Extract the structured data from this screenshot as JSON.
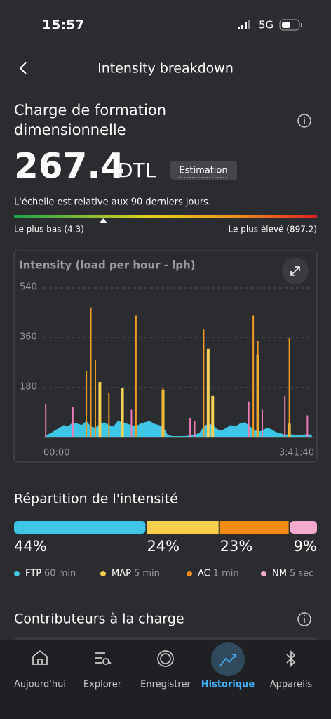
{
  "status": {
    "time": "15:57",
    "network": "5G"
  },
  "header": {
    "title": "Intensity breakdown"
  },
  "metric": {
    "title_line1": "Charge de formation",
    "title_line2": "dimensionnelle",
    "value": 267.4,
    "unit": "DTL",
    "badge": "Estimation"
  },
  "scale": {
    "note": "L'échelle est relative aux 90 derniers jours.",
    "min": {
      "value": 4.3,
      "label": "Le plus bas (4.3)"
    },
    "max": {
      "value": 897.2,
      "label": "Le plus élevé (897.2)"
    }
  },
  "chart": {
    "title": "Intensity (load per hour - lph)",
    "ylim": [
      0,
      540
    ],
    "yticks": [
      180,
      360,
      540
    ],
    "x_start": "00:00",
    "x_end": "3:41:40",
    "series": [
      {
        "name": "FTP",
        "color": "#3ec6e6",
        "values": [
          8,
          15,
          25,
          35,
          45,
          40,
          55,
          50,
          45,
          60,
          40,
          35,
          50,
          55,
          45,
          40,
          60,
          55,
          50,
          45,
          40,
          50,
          55,
          60,
          50,
          45,
          40,
          10,
          5,
          5,
          5,
          5,
          8,
          10,
          15,
          40,
          50,
          45,
          30,
          25,
          35,
          45,
          40,
          50,
          55,
          45,
          30,
          20,
          25,
          35,
          30,
          20,
          15,
          10,
          12,
          10,
          8,
          10,
          12,
          10
        ]
      },
      {
        "name": "MAP",
        "color": "#f7d154",
        "values": [
          null,
          null,
          null,
          null,
          null,
          null,
          null,
          null,
          null,
          null,
          null,
          null,
          200,
          null,
          null,
          null,
          null,
          180,
          null,
          null,
          null,
          null,
          null,
          null,
          null,
          null,
          170,
          null,
          null,
          null,
          null,
          null,
          null,
          null,
          null,
          null,
          320,
          150,
          null,
          null,
          null,
          null,
          null,
          null,
          null,
          null,
          null,
          300,
          null,
          null,
          null,
          null,
          null,
          null,
          50,
          null,
          null,
          null,
          null,
          null
        ]
      },
      {
        "name": "AC",
        "color": "#f39a1e",
        "values": [
          null,
          null,
          null,
          null,
          null,
          null,
          null,
          null,
          null,
          240,
          470,
          280,
          null,
          null,
          160,
          null,
          null,
          null,
          null,
          null,
          440,
          null,
          null,
          null,
          null,
          null,
          180,
          null,
          null,
          null,
          null,
          null,
          null,
          null,
          null,
          390,
          null,
          null,
          null,
          null,
          null,
          null,
          null,
          null,
          null,
          null,
          440,
          350,
          null,
          null,
          null,
          null,
          null,
          null,
          360,
          null,
          null,
          null,
          null,
          null
        ]
      },
      {
        "name": "NM",
        "color": "#f07ab8",
        "values": [
          120,
          null,
          null,
          null,
          null,
          null,
          110,
          null,
          null,
          null,
          null,
          null,
          null,
          null,
          null,
          null,
          null,
          null,
          null,
          100,
          null,
          null,
          null,
          null,
          null,
          null,
          null,
          null,
          null,
          null,
          null,
          null,
          70,
          60,
          null,
          null,
          null,
          null,
          null,
          null,
          null,
          null,
          null,
          null,
          null,
          130,
          null,
          null,
          100,
          null,
          null,
          null,
          null,
          150,
          null,
          null,
          null,
          null,
          80,
          null
        ]
      }
    ]
  },
  "distribution": {
    "title": "Répartition de l'intensité",
    "segments": [
      {
        "value": 44,
        "label": "44%",
        "name": "FTP",
        "detail": "60 min",
        "color": "#3ec6e6"
      },
      {
        "value": 24,
        "label": "24%",
        "name": "MAP",
        "detail": "5 min",
        "color": "#f7cf4a"
      },
      {
        "value": 23,
        "label": "23%",
        "name": "AC",
        "detail": "1 min",
        "color": "#f38a12"
      },
      {
        "value": 9,
        "label": "9%",
        "name": "NM",
        "detail": "5 sec",
        "color": "#f7a8cf"
      }
    ]
  },
  "contributors": {
    "title": "Contributeurs à la charge"
  },
  "nav": [
    {
      "label": "Aujourd'hui"
    },
    {
      "label": "Explorer"
    },
    {
      "label": "Enregistrer"
    },
    {
      "label": "Historique",
      "active": true
    },
    {
      "label": "Appareils"
    }
  ]
}
